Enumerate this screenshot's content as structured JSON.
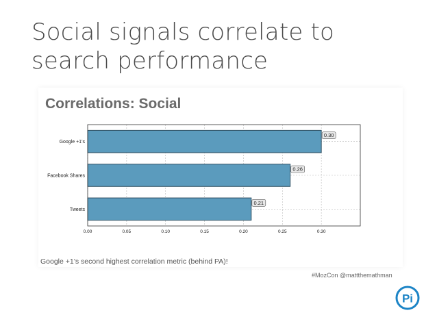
{
  "slide": {
    "title": "Social signals correlate to search performance",
    "caption": "Google +1’s second highest correlation metric (behind PA)!",
    "hashtag_handle": "#MozCon  @mattthemathman",
    "logo_text": "Pi"
  },
  "colors": {
    "bar_fill": "#5b9bbd",
    "bar_stroke": "#2f4f62",
    "grid": "#b9b9b9",
    "logo_blue": "#1c84c6",
    "title_text": "#4a4a4a"
  },
  "chart_data": {
    "type": "bar",
    "orientation": "horizontal",
    "title": "Correlations: Social",
    "categories": [
      "Google +1’s",
      "Facebook Shares",
      "Tweets"
    ],
    "values": [
      0.3,
      0.26,
      0.21
    ],
    "data_labels": [
      "0.30",
      "0.26",
      "0.21"
    ],
    "x_ticks": [
      "0.00",
      "0.05",
      "0.10",
      "0.15",
      "0.20",
      "0.25",
      "0.30"
    ],
    "xlim": [
      0,
      0.35
    ],
    "xlabel": "",
    "ylabel": "",
    "grid": true,
    "grid_style": "dashed"
  }
}
